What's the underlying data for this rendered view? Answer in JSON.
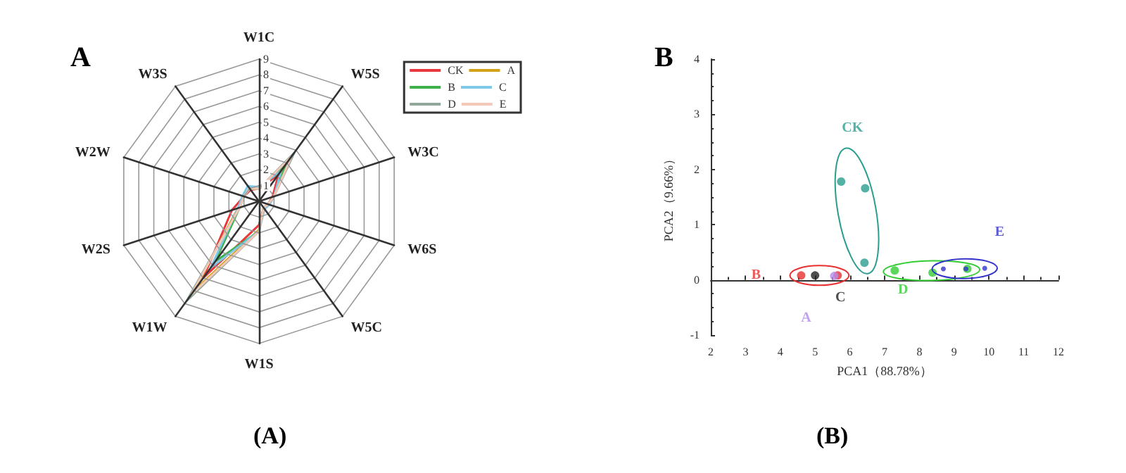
{
  "chart_data": [
    {
      "type": "radar",
      "title": "A",
      "annotations": [
        "(A)"
      ],
      "categories": [
        "W1C",
        "W5S",
        "W3C",
        "W6S",
        "W5C",
        "W1S",
        "W1W",
        "W2S",
        "W2W",
        "W3S"
      ],
      "ylim": [
        0,
        9
      ],
      "yticks": [
        1,
        2,
        3,
        4,
        5,
        6,
        7,
        8,
        9
      ],
      "legend": "top right",
      "series": [
        {
          "name": "CK",
          "color": "#e8383d",
          "values": [
            0.8,
            2.1,
            0.9,
            0.6,
            0.5,
            1.5,
            6.0,
            1.8,
            1.0,
            0.9
          ]
        },
        {
          "name": "A",
          "color": "#d4a017",
          "values": [
            0.8,
            2.8,
            1.0,
            0.6,
            0.5,
            1.8,
            7.0,
            1.4,
            1.0,
            1.0
          ]
        },
        {
          "name": "B",
          "color": "#3cb04a",
          "values": [
            0.8,
            3.0,
            1.0,
            0.6,
            0.5,
            1.9,
            4.7,
            1.3,
            1.0,
            1.0
          ]
        },
        {
          "name": "C",
          "color": "#7ec8e8",
          "values": [
            0.9,
            2.4,
            1.0,
            0.7,
            0.6,
            1.9,
            5.2,
            1.4,
            1.1,
            1.2
          ]
        },
        {
          "name": "D",
          "color": "#8fa89a",
          "values": [
            0.8,
            3.8,
            1.0,
            0.6,
            0.5,
            1.9,
            7.8,
            1.3,
            1.0,
            1.0
          ]
        },
        {
          "name": "E",
          "color": "#f2c9b8",
          "values": [
            0.8,
            3.5,
            1.0,
            0.6,
            0.5,
            1.9,
            7.3,
            1.3,
            1.0,
            1.0
          ]
        }
      ]
    },
    {
      "type": "scatter",
      "title": "B",
      "annotations": [
        "(B)"
      ],
      "xlabel": "PCA1（88.78%）",
      "ylabel": "PCA2（9.66%）",
      "xlim": [
        2,
        12
      ],
      "xticks": [
        2,
        3,
        4,
        5,
        6,
        7,
        8,
        9,
        10,
        11,
        12
      ],
      "ylim": [
        -1,
        4
      ],
      "yticks": [
        -1,
        0,
        1,
        2,
        3,
        4
      ],
      "marker": "circle",
      "series": [
        {
          "name": "CK",
          "color": "#2a9d8f",
          "x": [
            5.75,
            6.44,
            6.42
          ],
          "values": [
            1.78,
            1.66,
            0.31
          ]
        },
        {
          "name": "B",
          "color": "#e83030",
          "x": [
            4.6,
            5.65
          ],
          "values": [
            0.08,
            0.08
          ]
        },
        {
          "name": "A",
          "color": "#b58be8",
          "x": [
            5.55
          ],
          "values": [
            0.07
          ]
        },
        {
          "name": "C",
          "color": "#222222",
          "x": [
            5.0
          ],
          "values": [
            0.08
          ]
        },
        {
          "name": "D",
          "color": "#33cc33",
          "x": [
            7.29,
            8.38,
            9.38
          ],
          "values": [
            0.17,
            0.13,
            0.2
          ]
        },
        {
          "name": "E",
          "color": "#3333cc",
          "x": [
            8.69,
            9.34,
            9.88
          ],
          "values": [
            0.2,
            0.2,
            0.21
          ]
        }
      ]
    }
  ]
}
